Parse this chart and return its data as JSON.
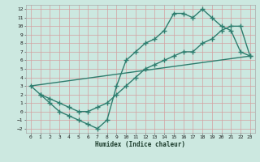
{
  "bg_color": "#cce8e0",
  "grid_color": "#d4a0a0",
  "line_color": "#2e7d6e",
  "line_width": 1.0,
  "marker": "+",
  "marker_size": 4,
  "marker_edge_width": 1.0,
  "xlabel": "Humidex (Indice chaleur)",
  "xlim": [
    -0.5,
    23.5
  ],
  "ylim": [
    -2.5,
    12.5
  ],
  "xticks": [
    0,
    1,
    2,
    3,
    4,
    5,
    6,
    7,
    8,
    9,
    10,
    11,
    12,
    13,
    14,
    15,
    16,
    17,
    18,
    19,
    20,
    21,
    22,
    23
  ],
  "yticks": [
    -2,
    -1,
    0,
    1,
    2,
    3,
    4,
    5,
    6,
    7,
    8,
    9,
    10,
    11,
    12
  ],
  "curve1_x": [
    0,
    1,
    2,
    3,
    4,
    5,
    6,
    7,
    8,
    9,
    10,
    11,
    12,
    13,
    14,
    15,
    16,
    17,
    18,
    19,
    20,
    21,
    22,
    23
  ],
  "curve1_y": [
    3,
    2,
    1,
    0,
    -0.5,
    -1,
    -1.5,
    -2,
    -1,
    3,
    6,
    7,
    8,
    8.5,
    9.5,
    11.5,
    11.5,
    11,
    12,
    11,
    10,
    9.5,
    7,
    6.5
  ],
  "curve2_x": [
    1,
    2,
    3,
    4,
    5,
    6,
    7,
    8,
    9,
    10,
    11,
    12,
    13,
    14,
    15,
    16,
    17,
    18,
    19,
    20,
    21,
    22,
    23
  ],
  "curve2_y": [
    2,
    1.5,
    1,
    0.5,
    0,
    0,
    0.5,
    1,
    2,
    3,
    4,
    5,
    5.5,
    6,
    6.5,
    7,
    7,
    8,
    8.5,
    9.5,
    10,
    10,
    6.5
  ],
  "curve3_x": [
    0,
    23
  ],
  "curve3_y": [
    3,
    6.5
  ]
}
